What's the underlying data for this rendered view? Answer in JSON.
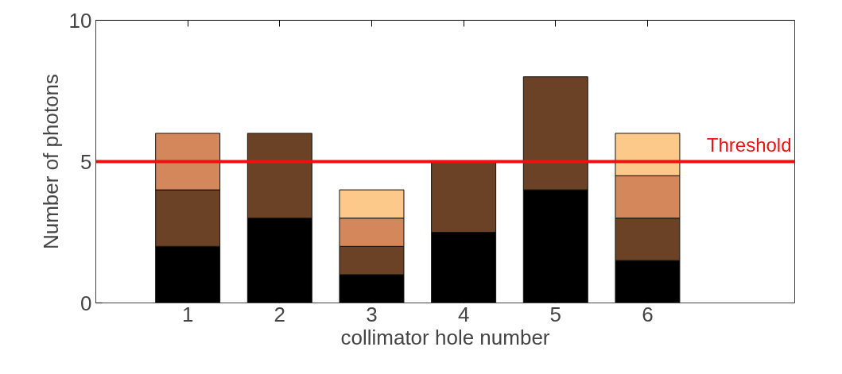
{
  "chart_data": {
    "type": "bar",
    "stacked": true,
    "xlabel": "collimator hole number",
    "ylabel": "Number of photons",
    "x": [
      1,
      2,
      3,
      4,
      5,
      6
    ],
    "xlim": [
      0,
      7.6
    ],
    "xticks": [
      1,
      2,
      3,
      4,
      5,
      6
    ],
    "ylim": [
      0,
      10
    ],
    "yticks": [
      0,
      5,
      10
    ],
    "grid": false,
    "series": [
      {
        "color": "#000000",
        "values": [
          2,
          3,
          1,
          2.5,
          4,
          1.5
        ]
      },
      {
        "color": "#6b4226",
        "values": [
          2,
          3,
          1,
          2.5,
          4,
          1.5
        ]
      },
      {
        "color": "#d4875a",
        "values": [
          2,
          null,
          1,
          null,
          null,
          1.5
        ]
      },
      {
        "color": "#fdc98a",
        "values": [
          null,
          null,
          1,
          null,
          null,
          1.5
        ]
      }
    ],
    "ref_lines": [
      {
        "axis": "y",
        "value": 5,
        "label": "Threshold",
        "color": "#ee1111"
      }
    ]
  }
}
